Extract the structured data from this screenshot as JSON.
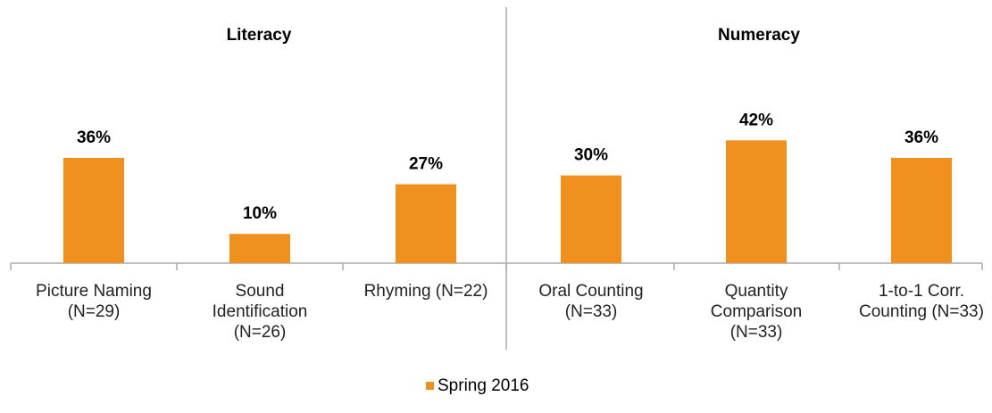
{
  "chart_data": {
    "type": "bar",
    "annotations": [
      "Literacy",
      "Numeracy"
    ],
    "categories": [
      "Picture Naming (N=29)",
      "Sound Identification (N=26)",
      "Rhyming (N=22)",
      "Oral Counting (N=33)",
      "Quantity Comparison (N=33)",
      "1-to-1 Corr. Counting (N=33)"
    ],
    "series": [
      {
        "name": "Spring 2016",
        "color": "#f0901e",
        "values": [
          36,
          10,
          27,
          30,
          42,
          36
        ],
        "value_labels": [
          "36%",
          "10%",
          "27%",
          "30%",
          "42%",
          "36%"
        ]
      }
    ],
    "ylim": [
      0,
      90
    ]
  }
}
